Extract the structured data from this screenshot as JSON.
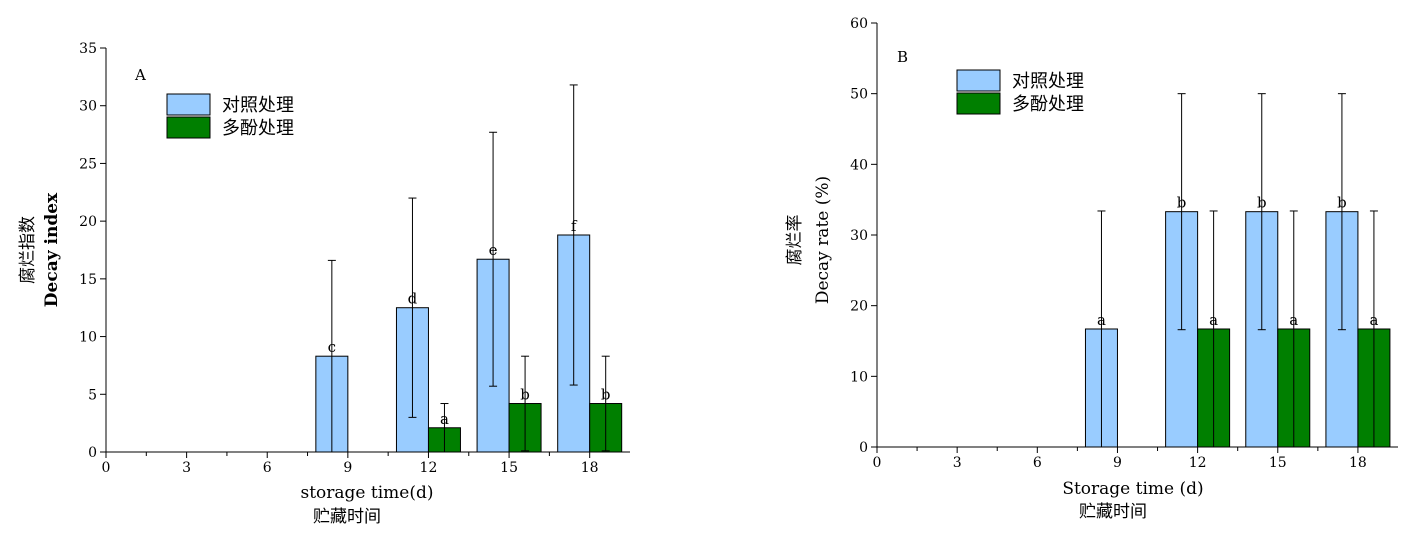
{
  "chart_data": [
    {
      "type": "bar",
      "panel_label": "A",
      "ylabel_cn": "腐烂指数",
      "ylabel_en": "Decay index",
      "xlabel_en": "storage time(d)",
      "xlabel_cn": "贮藏时间",
      "xlim": [
        0,
        19.5
      ],
      "ylim": [
        0,
        35
      ],
      "xticks": [
        "0",
        "3",
        "6",
        "9",
        "12",
        "15",
        "18"
      ],
      "yticks": [
        "0",
        "5",
        "10",
        "15",
        "20",
        "25",
        "30",
        "35"
      ],
      "legend_position": "top-left",
      "series": [
        {
          "name": "对照处理",
          "color": "#99ccff",
          "x": [
            9,
            12,
            15,
            18
          ],
          "values": [
            8.3,
            12.5,
            16.7,
            18.8
          ],
          "error": [
            8.3,
            9.5,
            11.0,
            13.0
          ],
          "letters": [
            "c",
            "d",
            "e",
            "f"
          ]
        },
        {
          "name": "多酚处理",
          "color": "#007f00",
          "x": [
            12,
            15,
            18
          ],
          "values": [
            2.1,
            4.2,
            4.2
          ],
          "error": [
            2.1,
            4.1,
            4.1
          ],
          "letters": [
            "a",
            "b",
            "b"
          ]
        }
      ]
    },
    {
      "type": "bar",
      "panel_label": "B",
      "ylabel_cn": "腐烂率",
      "ylabel_en": "Decay rate (%)",
      "xlabel_en": "Storage time (d)",
      "xlabel_cn": "贮藏时间",
      "xlim": [
        0,
        19.5
      ],
      "ylim": [
        0,
        60
      ],
      "xticks": [
        "0",
        "3",
        "6",
        "9",
        "12",
        "15",
        "18"
      ],
      "yticks": [
        "0",
        "10",
        "20",
        "30",
        "40",
        "50",
        "60"
      ],
      "legend_position": "top-left",
      "series": [
        {
          "name": "对照处理",
          "color": "#99ccff",
          "x": [
            9,
            12,
            15,
            18
          ],
          "values": [
            16.7,
            33.3,
            33.3,
            33.3
          ],
          "error": [
            16.7,
            16.7,
            16.7,
            16.7
          ],
          "letters": [
            "a",
            "b",
            "b",
            "b"
          ]
        },
        {
          "name": "多酚处理",
          "color": "#007f00",
          "x": [
            12,
            15,
            18
          ],
          "values": [
            16.7,
            16.7,
            16.7
          ],
          "error": [
            16.7,
            16.7,
            16.7
          ],
          "letters": [
            "a",
            "a",
            "a"
          ]
        }
      ]
    }
  ]
}
